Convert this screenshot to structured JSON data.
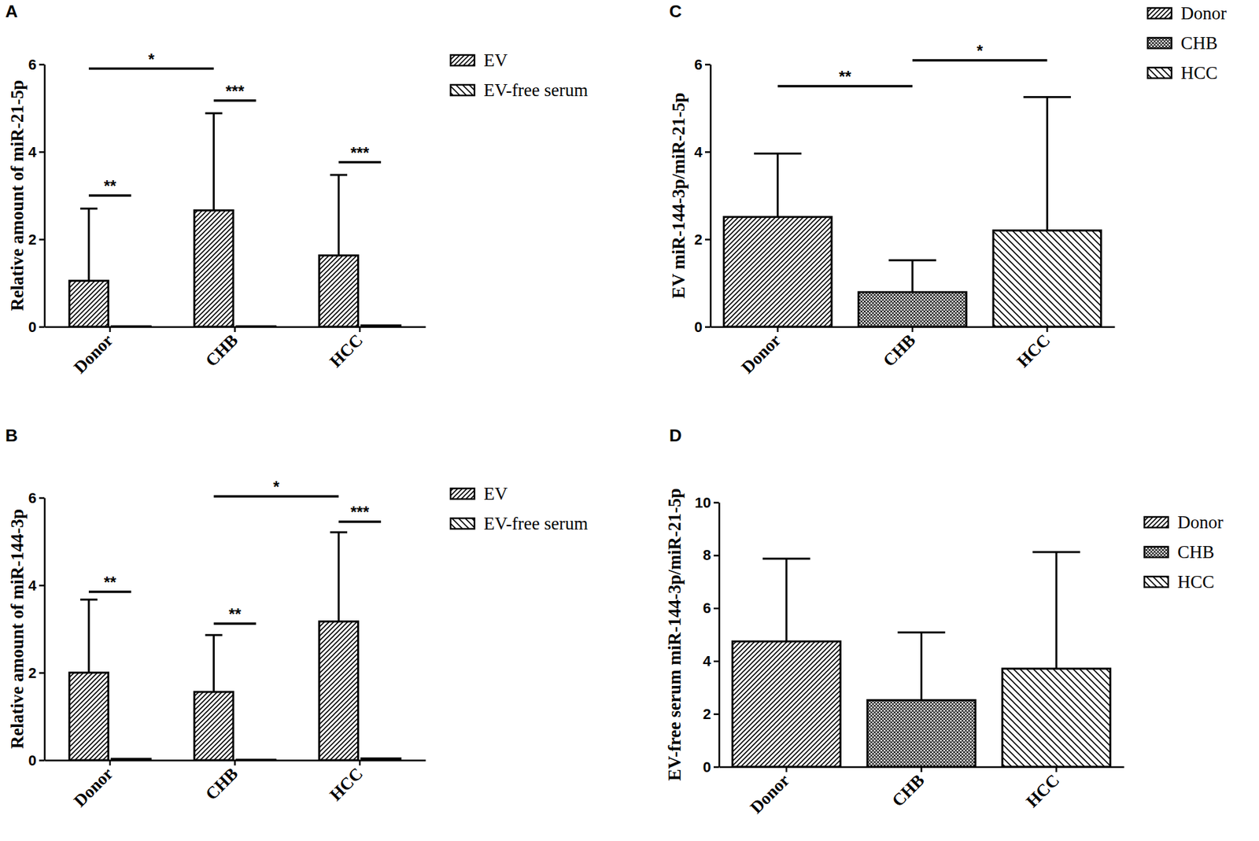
{
  "chart_data": [
    {
      "type": "bar",
      "title": "A",
      "y_label": "Relative amount of miR-21-5p",
      "categories": [
        "Donor",
        "CHB",
        "HCC"
      ],
      "series": [
        {
          "name": "EV",
          "color": "#000000",
          "values": [
            1.05,
            2.66,
            1.63
          ],
          "errors": [
            1.65,
            2.22,
            1.84
          ]
        },
        {
          "name": "EV-free serum",
          "color": "#000000",
          "values": [
            0.01,
            0.01,
            0.03
          ]
        }
      ],
      "ylim": [
        0,
        6
      ],
      "yticks": [
        0,
        2,
        4,
        6
      ],
      "legend": "right",
      "annotations": [
        {
          "label": "**",
          "between": [
            [
              "Donor",
              "EV"
            ],
            [
              "Donor",
              "EV-free serum"
            ]
          ],
          "y": 3.0
        },
        {
          "label": "*",
          "between": [
            [
              "Donor",
              "EV"
            ],
            [
              "CHB",
              "EV"
            ]
          ],
          "y": 5.9
        },
        {
          "label": "***",
          "between": [
            [
              "CHB",
              "EV"
            ],
            [
              "CHB",
              "EV-free serum"
            ]
          ],
          "y": 5.17
        },
        {
          "label": "***",
          "between": [
            [
              "HCC",
              "EV"
            ],
            [
              "HCC",
              "EV-free serum"
            ]
          ],
          "y": 3.76
        }
      ]
    },
    {
      "type": "bar",
      "title": "B",
      "y_label": "Relative amount of miR-144-3p",
      "categories": [
        "Donor",
        "CHB",
        "HCC"
      ],
      "series": [
        {
          "name": "EV",
          "color": "#000000",
          "values": [
            2.0,
            1.56,
            3.17
          ],
          "errors": [
            1.67,
            1.3,
            2.04
          ]
        },
        {
          "name": "EV-free serum",
          "color": "#000000",
          "values": [
            0.03,
            0.01,
            0.04
          ]
        }
      ],
      "ylim": [
        0,
        6
      ],
      "yticks": [
        0,
        2,
        4,
        6
      ],
      "legend": "right",
      "annotations": [
        {
          "label": "**",
          "between": [
            [
              "Donor",
              "EV"
            ],
            [
              "Donor",
              "EV-free serum"
            ]
          ],
          "y": 3.85
        },
        {
          "label": "**",
          "between": [
            [
              "CHB",
              "EV"
            ],
            [
              "CHB",
              "EV-free serum"
            ]
          ],
          "y": 3.12
        },
        {
          "label": "*",
          "between": [
            [
              "CHB",
              "EV"
            ],
            [
              "HCC",
              "EV"
            ]
          ],
          "y": 6.03
        },
        {
          "label": "***",
          "between": [
            [
              "HCC",
              "EV"
            ],
            [
              "HCC",
              "EV-free serum"
            ]
          ],
          "y": 5.45
        }
      ]
    },
    {
      "type": "bar",
      "title": "C",
      "y_label": "EV miR-144-3p/miR-21-5p",
      "categories": [
        "Donor",
        "CHB",
        "HCC"
      ],
      "values": [
        2.51,
        0.79,
        2.2
      ],
      "errors": [
        1.45,
        0.73,
        3.05
      ],
      "colors": [
        "#000000",
        "#000000",
        "#000000"
      ],
      "ylim": [
        0,
        6
      ],
      "yticks": [
        0,
        2,
        4,
        6
      ],
      "legend": "right",
      "annotations": [
        {
          "label": "**",
          "between": [
            [
              "Donor"
            ],
            [
              "CHB"
            ]
          ],
          "y": 5.5
        },
        {
          "label": "*",
          "between": [
            [
              "CHB"
            ],
            [
              "HCC"
            ]
          ],
          "y": 6.09
        }
      ]
    },
    {
      "type": "bar",
      "title": "D",
      "y_label": "EV-free serum miR-144-3p/miR-21-5p",
      "categories": [
        "Donor",
        "CHB",
        "HCC"
      ],
      "values": [
        4.74,
        2.52,
        3.71
      ],
      "errors": [
        3.13,
        2.56,
        4.41
      ],
      "colors": [
        "#000000",
        "#000000",
        "#000000"
      ],
      "ylim": [
        0,
        10
      ],
      "yticks": [
        0,
        2,
        4,
        6,
        8,
        10
      ],
      "legend": "right"
    }
  ]
}
